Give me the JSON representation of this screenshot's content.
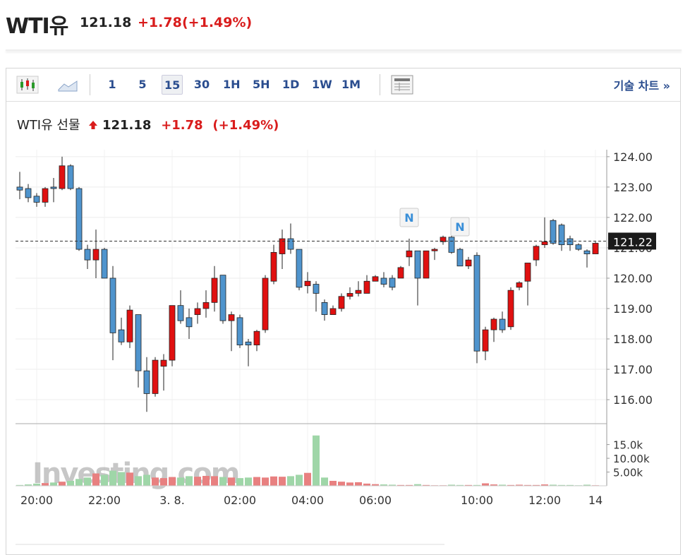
{
  "header": {
    "title": "WTI유",
    "price": "121.18",
    "change": "+1.78",
    "change_pct": "(+1.49%)"
  },
  "toolbar": {
    "intervals": [
      "1",
      "5",
      "15",
      "30",
      "1H",
      "5H",
      "1D",
      "1W",
      "1M"
    ],
    "selected": "15",
    "link": "기술 차트 »"
  },
  "chart_data": {
    "type": "candlestick",
    "title": "WTI유 선물",
    "last": "121.18",
    "change": "+1.78",
    "change_pct": "(+1.49%)",
    "watermark": "Investing.com",
    "up_color": "#e01010",
    "down_color": "#4f94cd",
    "volume_up_color": "#e88080",
    "volume_down_color": "#9fd6a8",
    "categories": [
      null,
      null,
      "20:00",
      null,
      null,
      null,
      null,
      null,
      null,
      null,
      "22:00",
      null,
      null,
      null,
      null,
      null,
      null,
      null,
      "3. 8.",
      null,
      null,
      null,
      null,
      null,
      null,
      null,
      "02:00",
      null,
      null,
      null,
      null,
      null,
      null,
      null,
      "04:00",
      null,
      null,
      null,
      null,
      null,
      null,
      null,
      "06:00",
      null,
      null,
      null,
      null,
      null,
      null,
      null,
      null,
      null,
      null,
      null,
      "10:00",
      null,
      null,
      null,
      null,
      null,
      null,
      null,
      "12:00",
      null,
      null,
      null,
      null,
      null,
      "14"
    ],
    "open": [
      123.0,
      122.95,
      122.7,
      122.5,
      123.0,
      122.95,
      123.7,
      122.95,
      120.95,
      120.6,
      120.95,
      120.0,
      118.3,
      117.9,
      118.8,
      116.95,
      116.2,
      117.1,
      117.3,
      119.1,
      118.7,
      118.8,
      119.0,
      119.2,
      120.1,
      118.6,
      118.7,
      117.9,
      117.8,
      118.3,
      119.9,
      120.8,
      121.3,
      120.95,
      119.75,
      119.8,
      119.2,
      118.8,
      119.0,
      119.4,
      119.5,
      119.5,
      119.9,
      120.0,
      120.0,
      120.0,
      120.7,
      120.9,
      120.0,
      120.9,
      121.2,
      121.35,
      120.95,
      120.4,
      120.75,
      117.6,
      118.3,
      118.65,
      118.4,
      119.7,
      119.9,
      120.6,
      121.1,
      121.9,
      121.75,
      121.3,
      121.1,
      120.9,
      120.8
    ],
    "high": [
      123.5,
      123.1,
      122.8,
      123.0,
      123.3,
      124.0,
      123.75,
      123.0,
      121.1,
      121.6,
      121.0,
      120.4,
      118.7,
      119.1,
      118.8,
      117.4,
      117.4,
      117.5,
      119.1,
      119.6,
      119.0,
      119.2,
      119.6,
      120.4,
      120.1,
      118.9,
      118.8,
      118.0,
      118.3,
      120.1,
      121.1,
      121.6,
      121.8,
      120.9,
      120.2,
      119.9,
      119.3,
      119.1,
      119.5,
      119.7,
      119.9,
      120.1,
      120.1,
      120.2,
      120.1,
      120.4,
      121.3,
      120.9,
      120.9,
      121.0,
      121.4,
      121.5,
      121.0,
      120.7,
      120.85,
      118.4,
      118.7,
      118.9,
      119.7,
      119.9,
      120.5,
      121.1,
      122.0,
      121.95,
      121.8,
      121.4,
      121.15,
      120.95,
      121.2
    ],
    "low": [
      122.6,
      122.5,
      122.35,
      122.35,
      122.5,
      122.9,
      122.9,
      120.9,
      120.3,
      120.0,
      120.0,
      117.3,
      117.8,
      117.7,
      116.4,
      115.6,
      116.1,
      116.3,
      117.1,
      118.5,
      118.0,
      118.5,
      118.7,
      118.9,
      118.5,
      117.6,
      117.7,
      117.1,
      117.6,
      118.2,
      119.8,
      120.3,
      120.8,
      119.6,
      119.5,
      118.9,
      118.6,
      118.8,
      118.9,
      119.3,
      119.4,
      119.5,
      119.9,
      119.7,
      119.6,
      120.0,
      120.4,
      119.1,
      120.0,
      120.6,
      121.1,
      120.8,
      120.4,
      120.3,
      117.2,
      117.3,
      117.9,
      118.2,
      118.3,
      119.6,
      119.1,
      120.4,
      121.0,
      121.1,
      120.9,
      120.9,
      120.9,
      120.35,
      120.8
    ],
    "close": [
      122.9,
      122.65,
      122.5,
      122.95,
      122.95,
      123.7,
      122.95,
      120.95,
      120.6,
      120.95,
      120.0,
      118.2,
      117.9,
      118.95,
      116.95,
      116.2,
      117.3,
      117.3,
      119.1,
      118.6,
      118.4,
      119.0,
      119.2,
      120.0,
      118.6,
      118.8,
      117.8,
      117.8,
      118.25,
      120.0,
      120.85,
      121.3,
      120.95,
      119.7,
      119.9,
      119.5,
      118.8,
      119.0,
      119.4,
      119.5,
      119.6,
      119.9,
      120.05,
      119.8,
      119.7,
      120.35,
      120.9,
      120.0,
      120.9,
      120.95,
      121.35,
      120.85,
      120.4,
      120.6,
      117.6,
      118.3,
      118.65,
      118.3,
      119.6,
      119.85,
      120.5,
      121.05,
      121.2,
      121.15,
      121.1,
      121.1,
      120.95,
      120.8,
      121.15
    ],
    "volume": [
      300,
      500,
      800,
      1000,
      1200,
      1500,
      1800,
      2500,
      3000,
      4500,
      4000,
      5500,
      5000,
      4800,
      3500,
      4000,
      3000,
      2800,
      3200,
      3000,
      3500,
      3300,
      3600,
      3500,
      3200,
      3000,
      2800,
      3000,
      3200,
      3000,
      3400,
      3300,
      3500,
      4000,
      4700,
      18300,
      3000,
      1800,
      1500,
      1200,
      1300,
      800,
      600,
      500,
      400,
      300,
      300,
      600,
      300,
      200,
      200,
      400,
      300,
      300,
      300,
      900,
      500,
      400,
      300,
      400,
      300,
      300,
      500,
      400,
      300,
      300,
      200,
      400,
      200
    ],
    "events": [
      null,
      null,
      null,
      null,
      null,
      null,
      null,
      null,
      null,
      null,
      null,
      null,
      null,
      null,
      null,
      null,
      null,
      null,
      null,
      null,
      null,
      null,
      null,
      null,
      null,
      null,
      null,
      null,
      null,
      null,
      null,
      null,
      null,
      null,
      null,
      null,
      null,
      null,
      null,
      null,
      null,
      null,
      null,
      null,
      null,
      null,
      "N",
      null,
      null,
      null,
      null,
      null,
      "N",
      null,
      null,
      null,
      null,
      null,
      null,
      null,
      null,
      null,
      null,
      null,
      null,
      null,
      null,
      null,
      null
    ],
    "ylim": [
      115.21,
      124.23
    ],
    "yticks": [
      {
        "value": 116,
        "label": "116.00"
      },
      {
        "value": 117,
        "label": "117.00"
      },
      {
        "value": 118,
        "label": "118.00"
      },
      {
        "value": 119,
        "label": "119.00"
      },
      {
        "value": 120,
        "label": "120.00"
      },
      {
        "value": 121,
        "label": "121.00"
      },
      {
        "value": 122,
        "label": "122.00"
      },
      {
        "value": 123,
        "label": "123.00"
      },
      {
        "value": 124,
        "label": "124.00"
      }
    ],
    "volume_ylim": [
      0,
      22600
    ],
    "volume_ticks": [
      {
        "value": 5000,
        "label": "5.00k"
      },
      {
        "value": 10000,
        "label": "10.00k"
      },
      {
        "value": 15000,
        "label": "15.0k"
      }
    ],
    "crosshair": 121.22,
    "grid": true
  }
}
